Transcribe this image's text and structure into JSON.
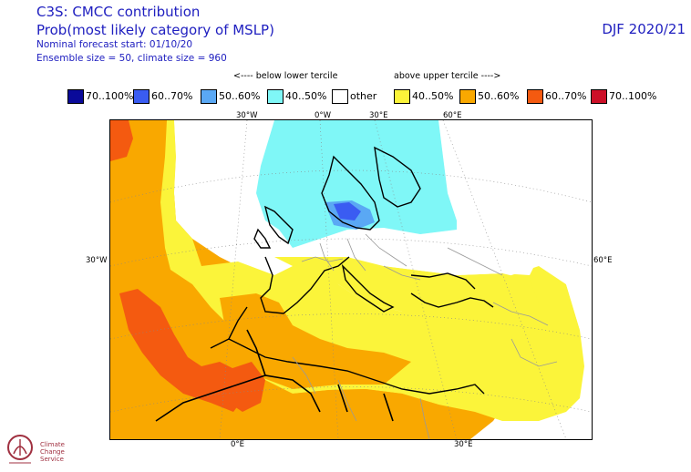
{
  "header": {
    "title": "C3S: CMCC contribution",
    "subtitle": "Prob(most likely category of MSLP)",
    "forecast_start": "Nominal forecast start: 01/10/20",
    "ensemble": "Ensemble size = 50, climate size = 960",
    "season": "DJF 2020/21"
  },
  "legend": {
    "below_label": "<---- below lower tercile",
    "above_label": "above upper tercile ---->",
    "items": [
      {
        "label": "70..100%",
        "color": "#0a0a9a"
      },
      {
        "label": "60..70%",
        "color": "#3a5cf2"
      },
      {
        "label": "50..60%",
        "color": "#5aa8f4"
      },
      {
        "label": "40..50%",
        "color": "#7ff7f7"
      },
      {
        "label": "other",
        "color": "#ffffff"
      },
      {
        "label": "40..50%",
        "color": "#fbf43a"
      },
      {
        "label": "50..60%",
        "color": "#f9a800"
      },
      {
        "label": "60..70%",
        "color": "#f45a10"
      },
      {
        "label": "70..100%",
        "color": "#cc1028"
      }
    ]
  },
  "map": {
    "top_ticks": [
      "30°W",
      "0°W",
      "30°E",
      "60°E"
    ],
    "left_tick": "30°W",
    "right_tick": "60°E",
    "bottom_ticks": [
      "0°E",
      "30°E"
    ]
  },
  "logo": {
    "line1": "Climate",
    "line2": "Change Service"
  }
}
